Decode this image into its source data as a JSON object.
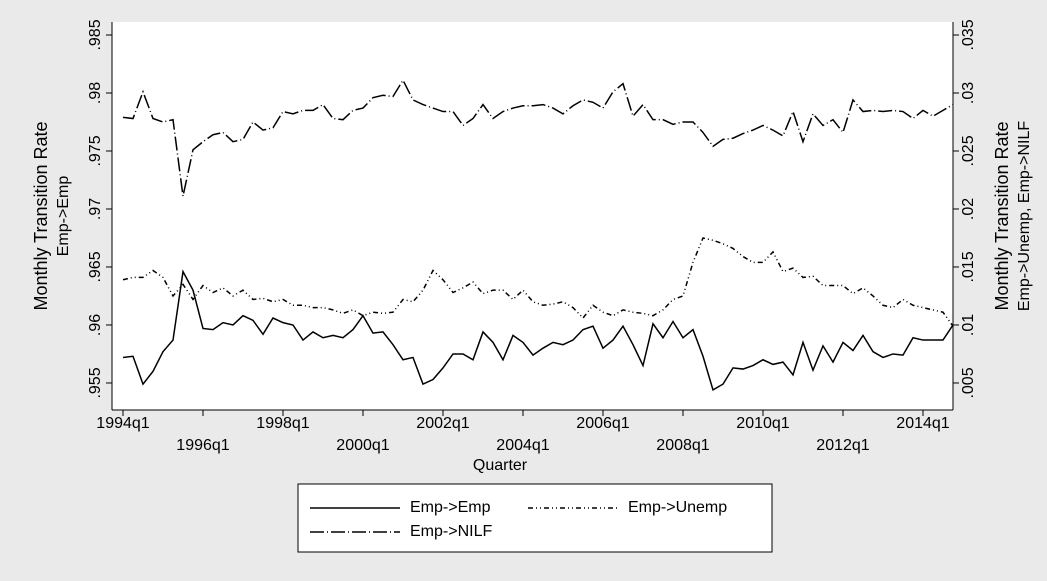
{
  "chart_data": {
    "type": "line",
    "x_label": "Quarter",
    "y_label": [
      "Monthly Transition Rate",
      "Emp->Emp"
    ],
    "y2_label": [
      "Monthly Transition Rate",
      "Emp->Unemp, Emp->NILF"
    ],
    "categories": [
      "1994q1",
      null,
      null,
      null,
      null,
      null,
      null,
      null,
      "1996q1",
      null,
      null,
      null,
      null,
      null,
      null,
      null,
      "1998q1",
      null,
      null,
      null,
      null,
      null,
      null,
      null,
      "2000q1",
      null,
      null,
      null,
      null,
      null,
      null,
      null,
      "2002q1",
      null,
      null,
      null,
      null,
      null,
      null,
      null,
      "2004q1",
      null,
      null,
      null,
      null,
      null,
      null,
      null,
      "2006q1",
      null,
      null,
      null,
      null,
      null,
      null,
      null,
      "2008q1",
      null,
      null,
      null,
      null,
      null,
      null,
      null,
      "2010q1",
      null,
      null,
      null,
      null,
      null,
      null,
      null,
      "2012q1",
      null,
      null,
      null,
      null,
      null,
      null,
      null,
      "2014q1",
      null,
      null,
      null
    ],
    "series": [
      {
        "name": "Emp->Emp",
        "color": "#000000",
        "pattern": "solid",
        "axis": "y",
        "values": [
          0.9572,
          0.9573,
          0.9549,
          0.956,
          0.9577,
          0.9587,
          0.9646,
          0.963,
          0.9597,
          0.9596,
          0.9602,
          0.96,
          0.9608,
          0.9604,
          0.9592,
          0.9606,
          0.9602,
          0.96,
          0.9587,
          0.9594,
          0.9589,
          0.9591,
          0.9589,
          0.9596,
          0.9608,
          0.9593,
          0.9594,
          0.9583,
          0.957,
          0.9572,
          0.9549,
          0.9553,
          0.9563,
          0.9575,
          0.9575,
          0.957,
          0.9594,
          0.9585,
          0.957,
          0.9591,
          0.9585,
          0.9574,
          0.958,
          0.9585,
          0.9583,
          0.9587,
          0.9596,
          0.9599,
          0.958,
          0.9587,
          0.9599,
          0.9583,
          0.9565,
          0.9601,
          0.9589,
          0.9603,
          0.9589,
          0.9596,
          0.9573,
          0.9544,
          0.9549,
          0.9563,
          0.9562,
          0.9565,
          0.957,
          0.9566,
          0.9568,
          0.9557,
          0.9585,
          0.9561,
          0.9582,
          0.9568,
          0.9585,
          0.9578,
          0.9591,
          0.9577,
          0.9572,
          0.9575,
          0.9574,
          0.9589,
          0.9587,
          0.9587,
          0.9587,
          0.96
        ]
      },
      {
        "name": "Emp->Unemp",
        "color": "#000000",
        "pattern": "shortdash-dot",
        "axis": "y2",
        "values": [
          0.0139,
          0.0141,
          0.0141,
          0.0147,
          0.0141,
          0.0125,
          0.0135,
          0.0122,
          0.0134,
          0.0128,
          0.0132,
          0.0125,
          0.013,
          0.0122,
          0.0123,
          0.012,
          0.0122,
          0.0117,
          0.0117,
          0.0115,
          0.0115,
          0.0113,
          0.011,
          0.0113,
          0.0108,
          0.0111,
          0.011,
          0.0111,
          0.0122,
          0.012,
          0.013,
          0.0147,
          0.0139,
          0.0128,
          0.0132,
          0.0137,
          0.0127,
          0.013,
          0.013,
          0.0122,
          0.013,
          0.012,
          0.0117,
          0.0118,
          0.012,
          0.0115,
          0.0106,
          0.0117,
          0.0111,
          0.0108,
          0.0113,
          0.0111,
          0.011,
          0.0108,
          0.0113,
          0.0122,
          0.0125,
          0.0154,
          0.0175,
          0.0173,
          0.017,
          0.0166,
          0.0159,
          0.0154,
          0.0154,
          0.0163,
          0.0146,
          0.0149,
          0.0141,
          0.0142,
          0.0134,
          0.0134,
          0.0134,
          0.0127,
          0.0132,
          0.0125,
          0.0117,
          0.0115,
          0.0122,
          0.0117,
          0.0115,
          0.0113,
          0.0111,
          0.0099
        ]
      },
      {
        "name": "Emp->NILF",
        "color": "#000000",
        "pattern": "longdash-dot",
        "axis": "y2",
        "values": [
          0.0279,
          0.0278,
          0.0301,
          0.0278,
          0.0275,
          0.0277,
          0.0211,
          0.0251,
          0.0258,
          0.0264,
          0.0266,
          0.0258,
          0.026,
          0.0275,
          0.0268,
          0.027,
          0.0284,
          0.0282,
          0.0285,
          0.0285,
          0.029,
          0.0278,
          0.0277,
          0.0285,
          0.0287,
          0.0296,
          0.0298,
          0.0297,
          0.0311,
          0.0294,
          0.029,
          0.0287,
          0.0284,
          0.0284,
          0.0272,
          0.0278,
          0.029,
          0.0278,
          0.0284,
          0.0287,
          0.0289,
          0.0289,
          0.029,
          0.0287,
          0.0282,
          0.0289,
          0.0294,
          0.0292,
          0.0287,
          0.0301,
          0.0308,
          0.028,
          0.029,
          0.0277,
          0.0277,
          0.0273,
          0.0275,
          0.0275,
          0.0266,
          0.0254,
          0.026,
          0.0261,
          0.0265,
          0.0268,
          0.0272,
          0.0268,
          0.0263,
          0.0284,
          0.0258,
          0.0282,
          0.0272,
          0.0277,
          0.0266,
          0.0294,
          0.0284,
          0.0285,
          0.0284,
          0.0285,
          0.0284,
          0.0278,
          0.0285,
          0.028,
          0.0285,
          0.029
        ]
      }
    ],
    "ylim": [
      0.95267,
      0.98612
    ],
    "yticks": [
      {
        "value": 0.955,
        "label": ".955"
      },
      {
        "value": 0.96,
        "label": ".96"
      },
      {
        "value": 0.965,
        "label": ".965"
      },
      {
        "value": 0.97,
        "label": ".97"
      },
      {
        "value": 0.975,
        "label": ".975"
      },
      {
        "value": 0.98,
        "label": ".98"
      },
      {
        "value": 0.985,
        "label": ".985"
      }
    ],
    "y2lim": [
      0.00267,
      0.03612
    ],
    "y2ticks": [
      {
        "value": 0.005,
        "label": ".005"
      },
      {
        "value": 0.01,
        "label": ".01"
      },
      {
        "value": 0.015,
        "label": ".015"
      },
      {
        "value": 0.02,
        "label": ".02"
      },
      {
        "value": 0.025,
        "label": ".025"
      },
      {
        "value": 0.03,
        "label": ".03"
      },
      {
        "value": 0.035,
        "label": ".035"
      }
    ],
    "grid": false,
    "legend": "bottom"
  }
}
